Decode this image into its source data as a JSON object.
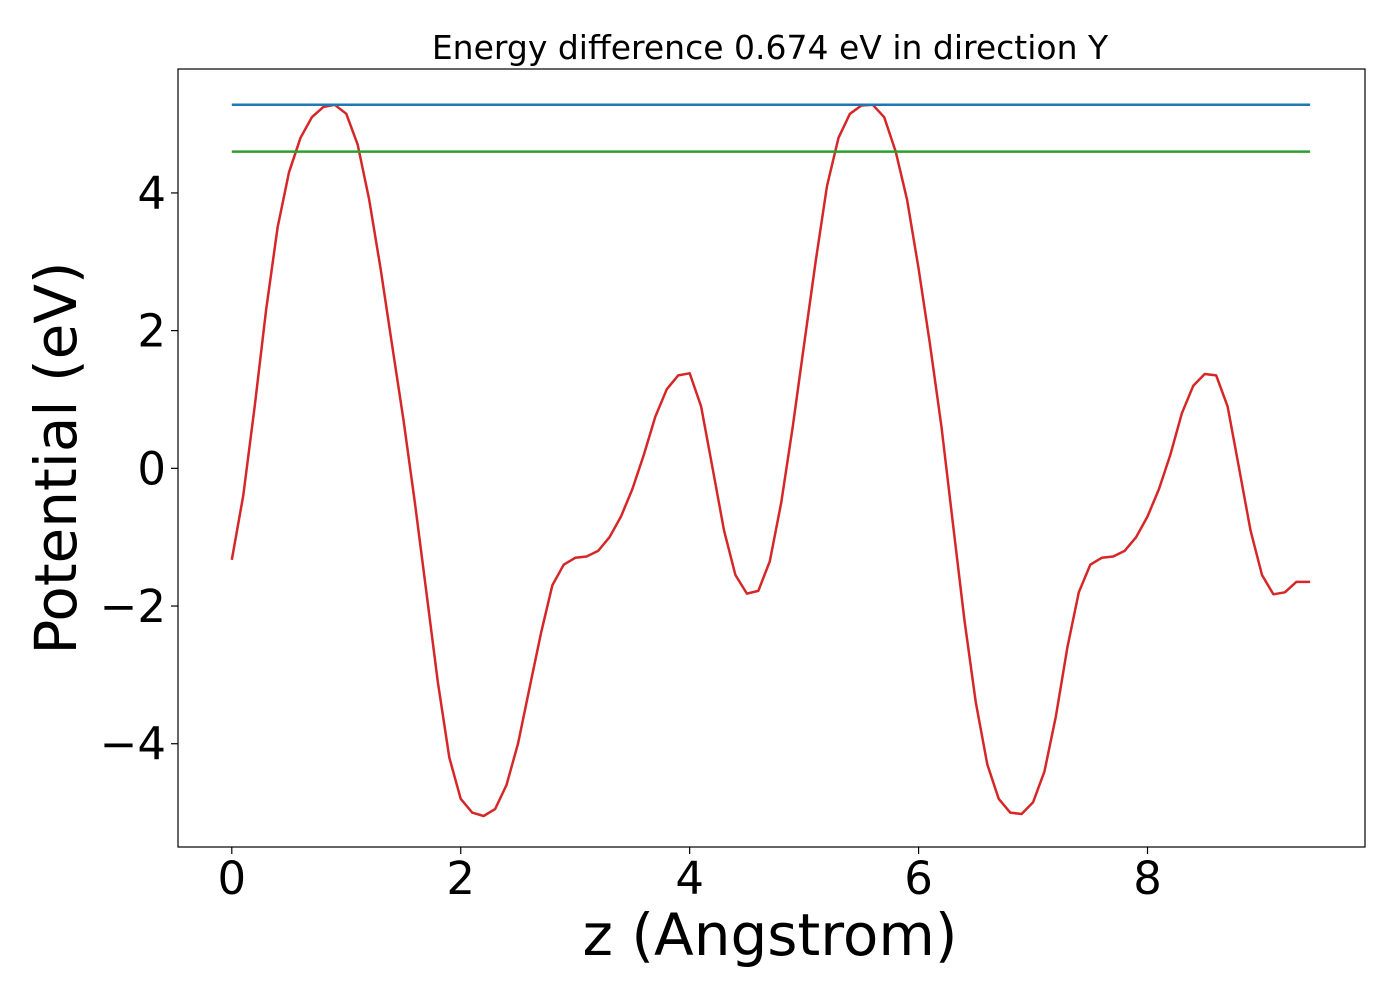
{
  "chart_data": {
    "type": "line",
    "title": "Energy difference 0.674 eV in direction Y",
    "xlabel": "z (Angstrom)",
    "ylabel": "Potential (eV)",
    "xlim": [
      -0.47,
      9.9
    ],
    "ylim": [
      -5.5,
      5.8
    ],
    "xticks": [
      0,
      2,
      4,
      6,
      8
    ],
    "xtick_labels": [
      "0",
      "2",
      "4",
      "6",
      "8"
    ],
    "yticks": [
      -4,
      -2,
      0,
      2,
      4
    ],
    "ytick_labels": [
      "−4",
      "−2",
      "0",
      "2",
      "4"
    ],
    "grid": false,
    "series": [
      {
        "color": "#d62728",
        "x": [
          0.0,
          0.1,
          0.2,
          0.3,
          0.4,
          0.5,
          0.6,
          0.7,
          0.8,
          0.9,
          1.0,
          1.1,
          1.2,
          1.3,
          1.4,
          1.5,
          1.6,
          1.7,
          1.8,
          1.9,
          2.0,
          2.1,
          2.2,
          2.3,
          2.4,
          2.5,
          2.6,
          2.7,
          2.8,
          2.9,
          3.0,
          3.1,
          3.2,
          3.3,
          3.4,
          3.5,
          3.6,
          3.7,
          3.8,
          3.9,
          4.0,
          4.1,
          4.2,
          4.3,
          4.4,
          4.5,
          4.6,
          4.7,
          4.8,
          4.9,
          5.0,
          5.1,
          5.2,
          5.3,
          5.4,
          5.5,
          5.6,
          5.7,
          5.8,
          5.9,
          6.0,
          6.1,
          6.2,
          6.3,
          6.4,
          6.5,
          6.6,
          6.7,
          6.8,
          6.9,
          7.0,
          7.1,
          7.2,
          7.3,
          7.4,
          7.5,
          7.6,
          7.7,
          7.8,
          7.9,
          8.0,
          8.1,
          8.2,
          8.3,
          8.4,
          8.5,
          8.6,
          8.7,
          8.8,
          8.9,
          9.0,
          9.1,
          9.2,
          9.3,
          9.42
        ],
        "values": [
          -1.33,
          -0.4,
          0.9,
          2.3,
          3.5,
          4.3,
          4.8,
          5.1,
          5.25,
          5.28,
          5.15,
          4.7,
          3.9,
          2.9,
          1.8,
          0.7,
          -0.5,
          -1.8,
          -3.1,
          -4.2,
          -4.8,
          -5.0,
          -5.05,
          -4.95,
          -4.6,
          -4.0,
          -3.2,
          -2.4,
          -1.7,
          -1.4,
          -1.3,
          -1.28,
          -1.2,
          -1.0,
          -0.7,
          -0.3,
          0.2,
          0.75,
          1.15,
          1.35,
          1.38,
          0.9,
          0.0,
          -0.9,
          -1.55,
          -1.82,
          -1.78,
          -1.35,
          -0.5,
          0.6,
          1.8,
          3.0,
          4.1,
          4.8,
          5.15,
          5.27,
          5.28,
          5.1,
          4.6,
          3.9,
          2.9,
          1.8,
          0.6,
          -0.8,
          -2.2,
          -3.4,
          -4.3,
          -4.8,
          -5.0,
          -5.02,
          -4.85,
          -4.4,
          -3.6,
          -2.6,
          -1.8,
          -1.4,
          -1.3,
          -1.28,
          -1.2,
          -1.0,
          -0.7,
          -0.3,
          0.2,
          0.8,
          1.2,
          1.37,
          1.35,
          0.9,
          0.0,
          -0.9,
          -1.55,
          -1.83,
          -1.8,
          -1.65,
          -1.65
        ]
      },
      {
        "color": "#1f77b4",
        "x": [
          0.0,
          9.42
        ],
        "values": [
          5.28,
          5.28
        ]
      },
      {
        "color": "#2ca02c",
        "x": [
          0.0,
          9.42
        ],
        "values": [
          4.6,
          4.6
        ]
      }
    ]
  }
}
